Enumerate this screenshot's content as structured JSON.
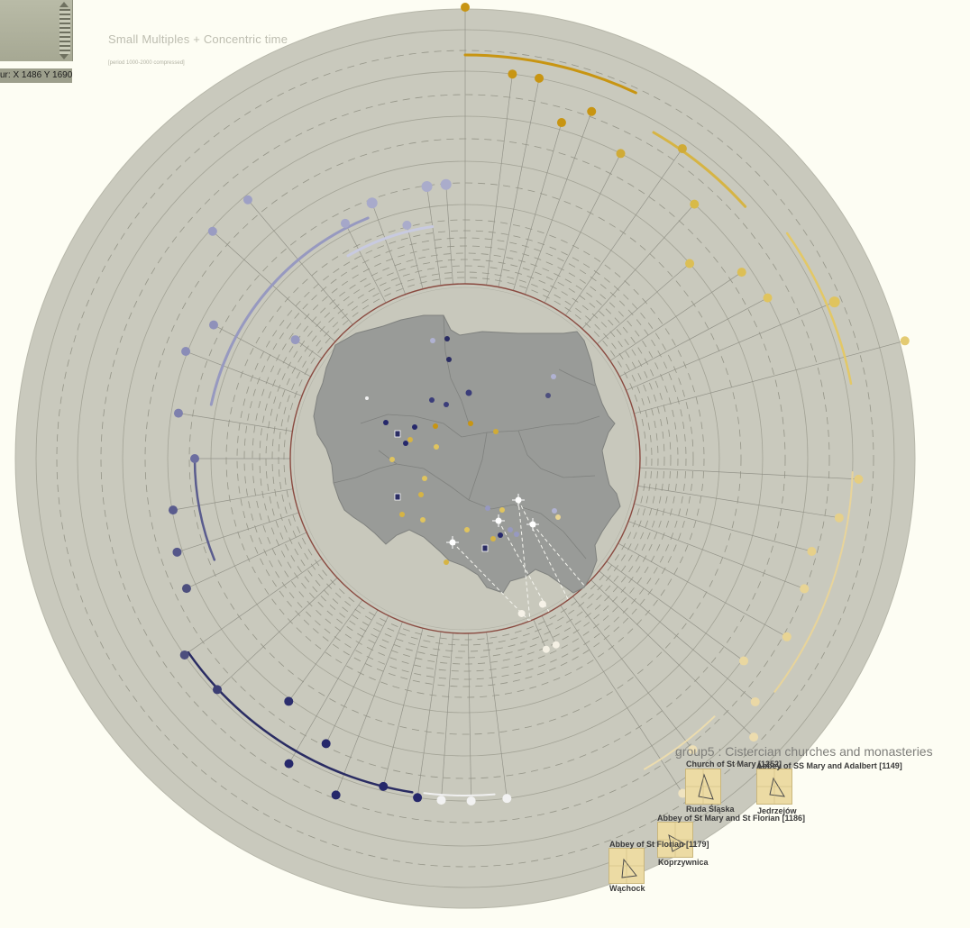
{
  "header": {
    "title": "Small Multiples + Concentric time",
    "subtitle": "[period 1000-2000 compressed]",
    "cursor_readout": "ur: X 1486 Y 1690"
  },
  "colors": {
    "background": "#fdfdf3",
    "disc": "#c9c9bd",
    "map": "#999b98",
    "cistercian": "#d4b75f",
    "benedictine": "#9c9fc7",
    "other_order": "#2a2c63",
    "white_group": "#ffffff",
    "inner_ring": "#8a4a40"
  },
  "group_panel": {
    "title": "group5 : Cistercian churches and monasteries",
    "sites": [
      {
        "name": "Church of St Mary [1252]",
        "place": "Ruda Śląska"
      },
      {
        "name": "Abbey of SS Mary and Adalbert [1149]",
        "place": "Jedrzejów"
      },
      {
        "name": "Abbey of St Mary and St Florian [1186]",
        "place": "Koprzywnica"
      },
      {
        "name": "Abbey of St Florian [1179]",
        "place": "Wąchock"
      }
    ]
  }
}
